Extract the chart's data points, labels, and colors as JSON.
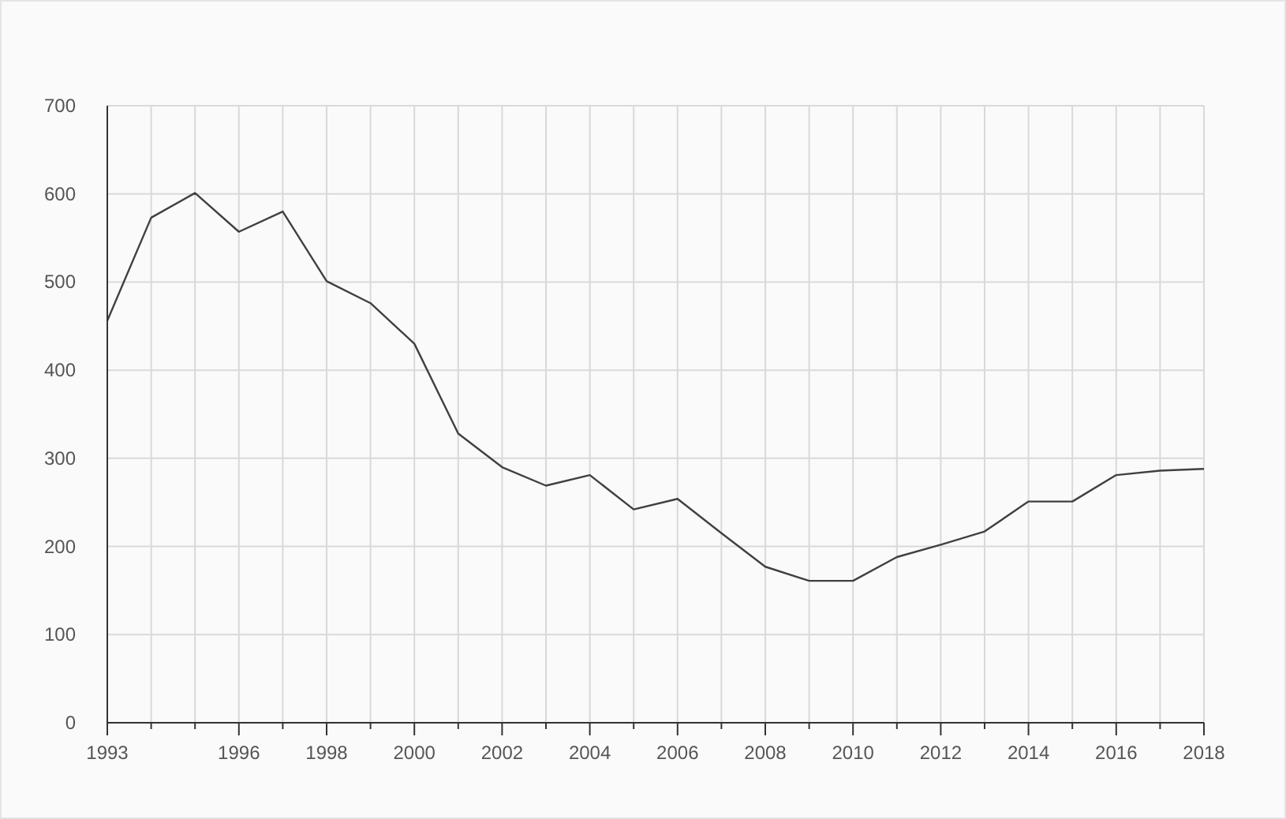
{
  "chart_data": {
    "type": "line",
    "x": [
      1993,
      1994,
      1995,
      1996,
      1997,
      1998,
      1999,
      2000,
      2001,
      2002,
      2003,
      2004,
      2005,
      2006,
      2007,
      2008,
      2009,
      2010,
      2011,
      2012,
      2013,
      2014,
      2015,
      2016,
      2017,
      2018
    ],
    "series": [
      {
        "color": "#404040",
        "values": [
          456,
          573,
          601,
          557,
          580,
          501,
          476,
          430,
          328,
          290,
          269,
          281,
          242,
          254,
          215,
          177,
          161,
          161,
          188,
          202,
          217,
          251,
          251,
          281,
          286,
          288
        ]
      }
    ],
    "xlim": [
      1993,
      2018
    ],
    "xticks": [
      1993,
      {
        "value": 1994,
        "label": null
      },
      {
        "value": 1995,
        "label": null
      },
      1996,
      {
        "value": 1997,
        "label": null
      },
      1998,
      {
        "value": 1999,
        "label": null
      },
      2000,
      {
        "value": 2001,
        "label": null
      },
      2002,
      {
        "value": 2003,
        "label": null
      },
      2004,
      {
        "value": 2005,
        "label": null
      },
      2006,
      {
        "value": 2007,
        "label": null
      },
      2008,
      {
        "value": 2009,
        "label": null
      },
      2010,
      {
        "value": 2011,
        "label": null
      },
      2012,
      {
        "value": 2013,
        "label": null
      },
      2014,
      {
        "value": 2015,
        "label": null
      },
      2016,
      {
        "value": 2017,
        "label": null
      },
      2018
    ],
    "ylim": [
      0,
      700
    ],
    "yticks": [
      0,
      100,
      200,
      300,
      400,
      500,
      600,
      700
    ],
    "grid": true,
    "marker": "none",
    "line_style": "solid"
  }
}
